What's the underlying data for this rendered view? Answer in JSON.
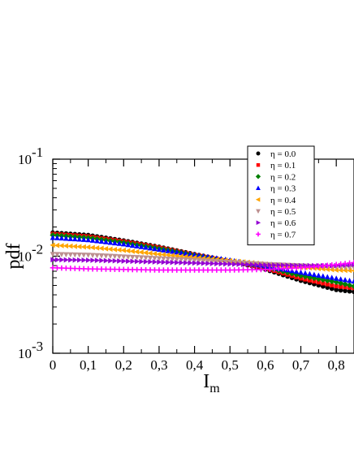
{
  "chart_data": {
    "type": "scatter",
    "title": "",
    "xlabel": "I",
    "xlabel_sub": "m",
    "ylabel": "pdf",
    "xlim": [
      0,
      0.85
    ],
    "ylim": [
      0.001,
      0.1
    ],
    "yscale": "log",
    "grid": false,
    "legend_position": "top-right",
    "xticks": [
      {
        "value": 0.0,
        "label": "0"
      },
      {
        "value": 0.1,
        "label": "0,1"
      },
      {
        "value": 0.2,
        "label": "0,2"
      },
      {
        "value": 0.3,
        "label": "0,3"
      },
      {
        "value": 0.4,
        "label": "0,4"
      },
      {
        "value": 0.5,
        "label": "0,5"
      },
      {
        "value": 0.6,
        "label": "0,6"
      },
      {
        "value": 0.7,
        "label": "0,7"
      },
      {
        "value": 0.8,
        "label": "0,8"
      }
    ],
    "yticks": [
      {
        "value": 0.001,
        "base": "10",
        "exp": "-3"
      },
      {
        "value": 0.01,
        "base": "10",
        "exp": "-2"
      },
      {
        "value": 0.1,
        "base": "10",
        "exp": "-1"
      }
    ],
    "series": [
      {
        "name": "η = 0.0",
        "color": "#000000",
        "marker": "circle",
        "points": [
          [
            0.0,
            0.0175
          ],
          [
            0.1,
            0.0165
          ],
          [
            0.2,
            0.0145
          ],
          [
            0.3,
            0.0125
          ],
          [
            0.4,
            0.0105
          ],
          [
            0.5,
            0.0089
          ],
          [
            0.6,
            0.0073
          ],
          [
            0.7,
            0.0056
          ],
          [
            0.8,
            0.0045
          ],
          [
            0.85,
            0.0043
          ]
        ]
      },
      {
        "name": "η = 0.1",
        "color": "#ff0000",
        "marker": "square",
        "points": [
          [
            0.0,
            0.017
          ],
          [
            0.1,
            0.016
          ],
          [
            0.2,
            0.0142
          ],
          [
            0.3,
            0.0123
          ],
          [
            0.4,
            0.0104
          ],
          [
            0.5,
            0.0089
          ],
          [
            0.6,
            0.0075
          ],
          [
            0.7,
            0.0059
          ],
          [
            0.8,
            0.0049
          ],
          [
            0.85,
            0.0047
          ]
        ]
      },
      {
        "name": "η = 0.2",
        "color": "#008000",
        "marker": "diamond",
        "points": [
          [
            0.0,
            0.0165
          ],
          [
            0.1,
            0.0155
          ],
          [
            0.2,
            0.0138
          ],
          [
            0.3,
            0.012
          ],
          [
            0.4,
            0.0103
          ],
          [
            0.5,
            0.0089
          ],
          [
            0.6,
            0.0077
          ],
          [
            0.7,
            0.0063
          ],
          [
            0.8,
            0.0054
          ],
          [
            0.85,
            0.0049
          ]
        ]
      },
      {
        "name": "η = 0.3",
        "color": "#0000ff",
        "marker": "triangle-up",
        "points": [
          [
            0.0,
            0.0155
          ],
          [
            0.1,
            0.0147
          ],
          [
            0.2,
            0.0133
          ],
          [
            0.3,
            0.0117
          ],
          [
            0.4,
            0.0103
          ],
          [
            0.5,
            0.0091
          ],
          [
            0.6,
            0.0079
          ],
          [
            0.7,
            0.0068
          ],
          [
            0.8,
            0.0059
          ],
          [
            0.85,
            0.0055
          ]
        ]
      },
      {
        "name": "η = 0.4",
        "color": "#ffa500",
        "marker": "triangle-left",
        "points": [
          [
            0.0,
            0.013
          ],
          [
            0.1,
            0.0124
          ],
          [
            0.2,
            0.0115
          ],
          [
            0.3,
            0.0105
          ],
          [
            0.4,
            0.0097
          ],
          [
            0.5,
            0.009
          ],
          [
            0.6,
            0.0083
          ],
          [
            0.7,
            0.0077
          ],
          [
            0.8,
            0.0072
          ],
          [
            0.85,
            0.0071
          ]
        ]
      },
      {
        "name": "η = 0.5",
        "color": "#bc8f8f",
        "marker": "triangle-down",
        "points": [
          [
            0.0,
            0.0105
          ],
          [
            0.1,
            0.0103
          ],
          [
            0.2,
            0.0099
          ],
          [
            0.3,
            0.0095
          ],
          [
            0.4,
            0.0091
          ],
          [
            0.5,
            0.0087
          ],
          [
            0.6,
            0.0083
          ],
          [
            0.7,
            0.008
          ],
          [
            0.8,
            0.0077
          ],
          [
            0.85,
            0.0076
          ]
        ]
      },
      {
        "name": "η = 0.6",
        "color": "#9400d3",
        "marker": "triangle-right",
        "points": [
          [
            0.0,
            0.0092
          ],
          [
            0.1,
            0.0091
          ],
          [
            0.2,
            0.0089
          ],
          [
            0.3,
            0.0087
          ],
          [
            0.4,
            0.0085
          ],
          [
            0.5,
            0.0083
          ],
          [
            0.6,
            0.0081
          ],
          [
            0.7,
            0.008
          ],
          [
            0.8,
            0.008
          ],
          [
            0.85,
            0.0082
          ]
        ]
      },
      {
        "name": "η = 0.7",
        "color": "#ff00ff",
        "marker": "plus",
        "points": [
          [
            0.0,
            0.0076
          ],
          [
            0.1,
            0.0074
          ],
          [
            0.2,
            0.0073
          ],
          [
            0.3,
            0.0072
          ],
          [
            0.4,
            0.0072
          ],
          [
            0.5,
            0.0072
          ],
          [
            0.6,
            0.0073
          ],
          [
            0.7,
            0.0076
          ],
          [
            0.8,
            0.0082
          ],
          [
            0.85,
            0.0086
          ]
        ]
      }
    ]
  }
}
